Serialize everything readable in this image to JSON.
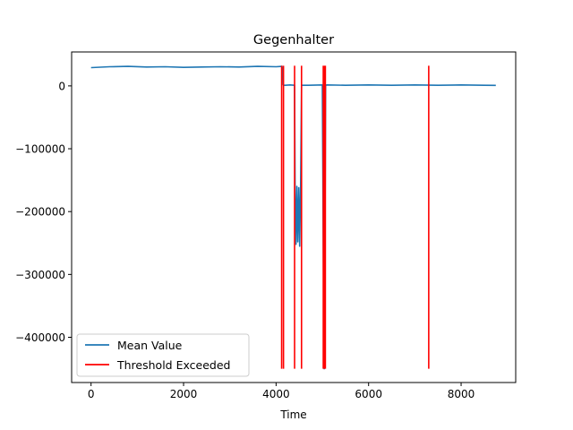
{
  "chart_data": {
    "type": "line",
    "title": "Gegenhalter",
    "xlabel": "Time",
    "ylabel": "",
    "xlim": [
      -420,
      9180
    ],
    "ylim": [
      -472000,
      54000
    ],
    "xticks": [
      0,
      2000,
      4000,
      6000,
      8000
    ],
    "xtick_labels": [
      "0",
      "2000",
      "4000",
      "6000",
      "8000"
    ],
    "yticks": [
      0,
      -100000,
      -200000,
      -300000,
      -400000
    ],
    "ytick_labels": [
      "0",
      "−100000",
      "−200000",
      "−300000",
      "−400000"
    ],
    "grid": false,
    "legend_position": "lower-left",
    "series": [
      {
        "name": "Mean Value",
        "color": "#1f77b4",
        "x": [
          0,
          400,
          800,
          1200,
          1600,
          2000,
          2400,
          2800,
          3200,
          3600,
          4000,
          4130,
          4150,
          4170,
          4200,
          4300,
          4400,
          4410,
          4430,
          4450,
          4470,
          4490,
          4510,
          4530,
          4550,
          4700,
          5000,
          5030,
          5040,
          5050,
          5070,
          5100,
          5500,
          6000,
          6500,
          7000,
          7500,
          8000,
          8500,
          8750
        ],
        "y": [
          29000,
          30500,
          31000,
          30000,
          30500,
          29500,
          30000,
          30500,
          30000,
          31000,
          30500,
          31000,
          2000,
          1000,
          1000,
          1500,
          1000,
          -165000,
          -252000,
          -160000,
          -248000,
          -162000,
          -255000,
          -155000,
          1000,
          1000,
          1500,
          -370000,
          -450000,
          -380000,
          1000,
          1500,
          1000,
          1500,
          1000,
          1500,
          1000,
          1500,
          1000,
          800
        ]
      }
    ],
    "threshold": {
      "name": "Threshold Exceeded",
      "color": "#ff0000",
      "x": [
        4120,
        4160,
        4400,
        4550,
        5020,
        5045,
        5065,
        7300
      ],
      "y_range": [
        -450000,
        32000
      ]
    }
  }
}
